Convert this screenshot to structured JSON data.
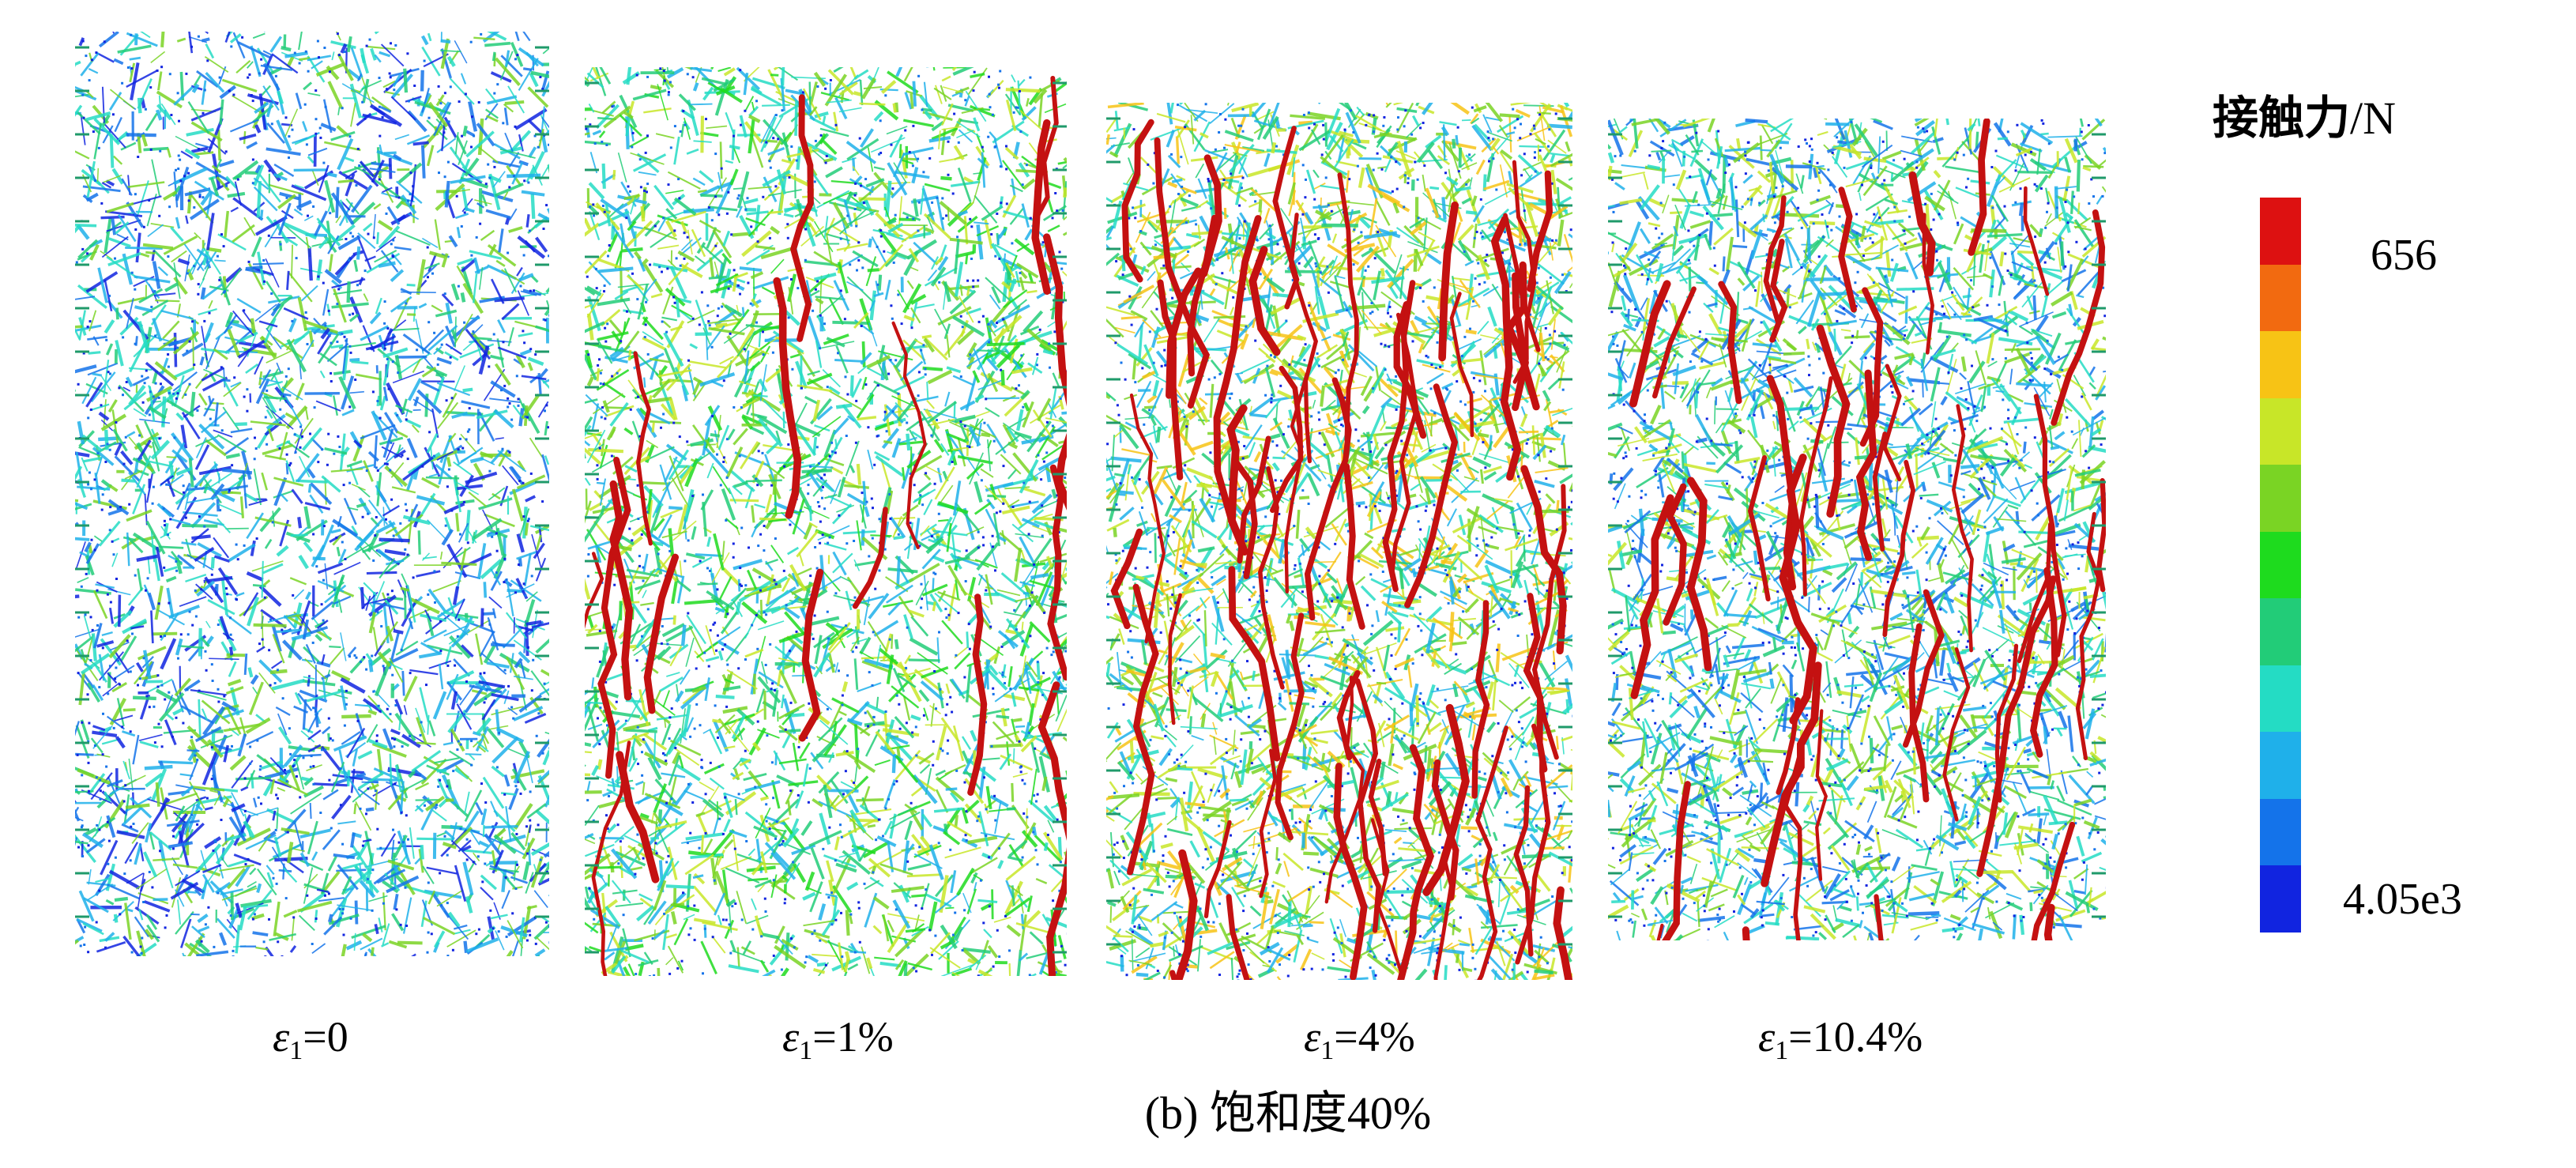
{
  "panels": [
    {
      "strain_symbol": "ε",
      "strain_sub": "1",
      "strain_value": "=0"
    },
    {
      "strain_symbol": "ε",
      "strain_sub": "1",
      "strain_value": "=1%"
    },
    {
      "strain_symbol": "ε",
      "strain_sub": "1",
      "strain_value": "=4%"
    },
    {
      "strain_symbol": "ε",
      "strain_sub": "1",
      "strain_value": "=10.4%"
    }
  ],
  "caption": "(b) 饱和度40%",
  "legend": {
    "title_zh": "接触力",
    "title_unit": "/N",
    "top_value": "656",
    "bottom_value": "4.05e3",
    "colors": [
      "#dd1111",
      "#f26a10",
      "#f7c315",
      "#c8e628",
      "#7ad424",
      "#1edb1e",
      "#22cc78",
      "#24dcc4",
      "#1fb0ea",
      "#1473ea",
      "#1124e0"
    ]
  }
}
